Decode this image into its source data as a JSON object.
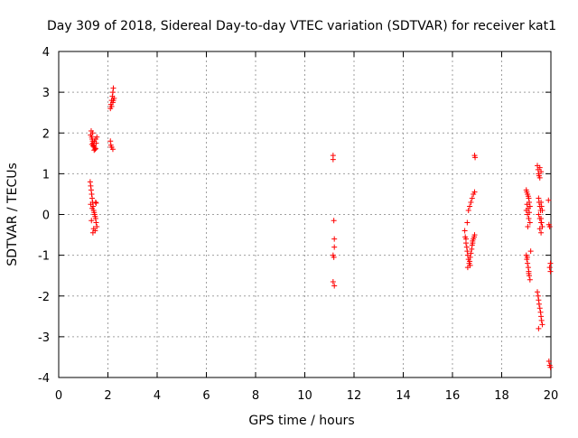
{
  "chart_data": {
    "type": "scatter",
    "title": "Day 309 of 2018, Sidereal Day-to-day VTEC variation (SDTVAR) for receiver kat1",
    "xlabel": "GPS time / hours",
    "ylabel": "SDTVAR / TECUs",
    "xlim": [
      0,
      20
    ],
    "ylim": [
      -4,
      4
    ],
    "xticks": [
      0,
      2,
      4,
      6,
      8,
      10,
      12,
      14,
      16,
      18,
      20
    ],
    "yticks": [
      -4,
      -3,
      -2,
      -1,
      0,
      1,
      2,
      3,
      4
    ],
    "grid": true,
    "marker": "+",
    "color": "#ff0000",
    "series": [
      {
        "name": "SDTVAR",
        "x": [
          1.3,
          1.32,
          1.34,
          1.36,
          1.38,
          1.4,
          1.42,
          1.45,
          1.48,
          1.5,
          1.52,
          1.55,
          1.35,
          1.4,
          1.45,
          1.5,
          1.38,
          1.44,
          1.28,
          1.3,
          1.32,
          1.34,
          1.36,
          1.38,
          1.4,
          1.42,
          1.44,
          1.46,
          1.48,
          1.5,
          1.52,
          1.55,
          1.3,
          1.36,
          1.42,
          1.48,
          1.5,
          1.52,
          1.33,
          1.39,
          2.1,
          2.12,
          2.15,
          2.18,
          2.2,
          2.22,
          2.25,
          2.2,
          2.15,
          2.1,
          2.15,
          2.2,
          2.12,
          2.22,
          11.15,
          11.15,
          11.18,
          11.2,
          11.2,
          11.15,
          11.18,
          11.15,
          11.2,
          16.5,
          16.52,
          16.55,
          16.58,
          16.6,
          16.62,
          16.65,
          16.68,
          16.7,
          16.72,
          16.75,
          16.78,
          16.8,
          16.82,
          16.85,
          16.88,
          16.9,
          16.55,
          16.6,
          16.65,
          16.7,
          16.75,
          16.8,
          16.85,
          16.9,
          16.62,
          16.72,
          16.82,
          16.9,
          16.92,
          19.0,
          19.02,
          19.05,
          19.08,
          19.1,
          19.12,
          19.15,
          19.0,
          19.05,
          19.1,
          19.15,
          19.03,
          19.08,
          19.12,
          19.06,
          19.0,
          19.02,
          19.05,
          19.08,
          19.1,
          19.12,
          19.15,
          19.18,
          19.04,
          19.1,
          19.45,
          19.48,
          19.5,
          19.52,
          19.55,
          19.6,
          19.62,
          19.65,
          19.5,
          19.55,
          19.6,
          19.65,
          19.45,
          19.48,
          19.5,
          19.52,
          19.55,
          19.58,
          19.6,
          19.62,
          19.65,
          19.5,
          19.55,
          19.6,
          19.5,
          19.52,
          19.55,
          19.58,
          19.6,
          19.62,
          19.65,
          19.55,
          19.6,
          19.9,
          19.92,
          19.95,
          19.98,
          19.95,
          19.98,
          19.92,
          19.95,
          19.98
        ],
        "y": [
          1.95,
          2.05,
          1.9,
          1.85,
          1.8,
          1.75,
          1.7,
          1.65,
          1.6,
          1.85,
          1.75,
          1.9,
          1.72,
          1.68,
          1.8,
          1.62,
          2.0,
          1.58,
          0.8,
          0.7,
          0.6,
          0.5,
          0.4,
          0.3,
          0.2,
          0.1,
          0.05,
          0,
          -0.05,
          -0.1,
          -0.2,
          -0.3,
          0.25,
          0.15,
          -0.35,
          -0.4,
          0.3,
          0.28,
          -0.15,
          -0.45,
          2.6,
          2.7,
          2.8,
          2.9,
          3.0,
          3.1,
          2.85,
          2.75,
          2.65,
          1.8,
          1.65,
          1.6,
          1.7,
          2.8,
          1.45,
          1.35,
          -0.15,
          -0.6,
          -0.8,
          -1.0,
          -1.05,
          -1.65,
          -1.75,
          -0.4,
          -0.55,
          -0.7,
          -0.8,
          -0.9,
          -1.0,
          -1.1,
          -1.2,
          -1.15,
          -1.05,
          -0.95,
          -0.85,
          -0.75,
          -0.65,
          -0.6,
          -0.55,
          -0.5,
          -0.6,
          -0.2,
          0.1,
          0.2,
          0.3,
          0.4,
          0.5,
          0.55,
          -1.3,
          -1.25,
          -0.7,
          1.45,
          1.4,
          0.6,
          0.55,
          0.5,
          0.45,
          0.4,
          0.3,
          0.2,
          0.1,
          0,
          -0.1,
          -0.2,
          0.25,
          0.15,
          0.05,
          -0.3,
          -1.0,
          -1.1,
          -1.2,
          -1.3,
          -1.4,
          -1.5,
          -1.6,
          -0.9,
          -1.05,
          -1.45,
          1.2,
          1.1,
          1.0,
          0.95,
          0.9,
          0.3,
          0.2,
          0.1,
          0,
          -0.1,
          -0.2,
          -0.3,
          -1.9,
          -2.0,
          -2.1,
          -2.2,
          -2.3,
          -2.4,
          -2.5,
          -2.6,
          -2.7,
          -2.8,
          -0.35,
          -0.45,
          0.4,
          0.3,
          0.2,
          0.1,
          -0.1,
          -0.2,
          -0.3,
          1.15,
          1.05,
          0.35,
          -0.25,
          -0.3,
          -1.2,
          -1.3,
          -1.4,
          -3.6,
          -3.7,
          -3.75
        ]
      }
    ]
  }
}
